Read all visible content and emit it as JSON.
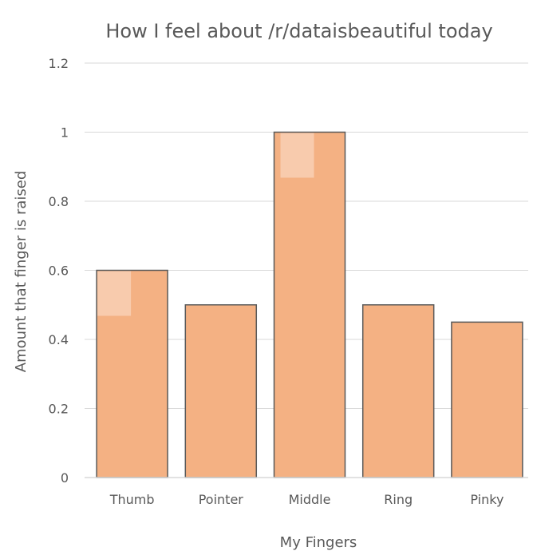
{
  "chart_data": {
    "type": "bar",
    "title": "How I feel about /r/dataisbeautiful today",
    "xlabel": "My Fingers",
    "ylabel": "Amount that finger is raised",
    "categories": [
      "Thumb",
      "Pointer",
      "Middle",
      "Ring",
      "Pinky"
    ],
    "values": [
      0.6,
      0.5,
      1.0,
      0.5,
      0.45
    ],
    "ylim": [
      0,
      1.2
    ],
    "yticks": [
      "0",
      "0.2",
      "0.4",
      "0.6",
      "0.8",
      "1",
      "1.2"
    ],
    "grid": true,
    "legend": "none",
    "colors": {
      "bar": "#f4b183",
      "bar_outline": "#595959",
      "fingernail": "#f8cbad",
      "gridline": "#d9d9d9",
      "text": "#595959"
    }
  }
}
